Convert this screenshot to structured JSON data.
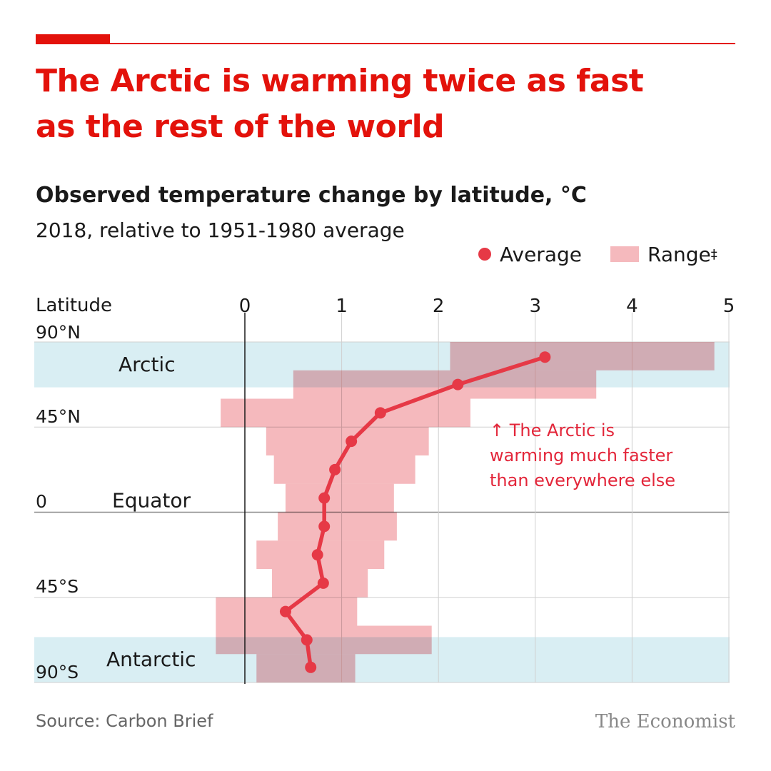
{
  "header": {
    "title_lines": [
      "The Arctic is warming twice as fast",
      "as the rest of the world"
    ],
    "subtitle": "Observed temperature change by latitude, °C",
    "subtitle2": "2018, relative to 1951-1980 average"
  },
  "legend": {
    "average_label": "Average",
    "range_label": "Range",
    "range_marker": "‡"
  },
  "annotation": {
    "lines": [
      "↑ The Arctic is",
      "warming much faster",
      "than everywhere else"
    ]
  },
  "footer": {
    "source": "Source: Carbon Brief",
    "brand": "The Economist"
  },
  "colors": {
    "accent": "#e3120b",
    "average": "#e63946",
    "range": "#f5b9bd",
    "polar_band": "#d9eef3"
  },
  "chart_data": {
    "type": "line",
    "title": "Observed temperature change by latitude, °C",
    "subtitle": "2018, relative to 1951-1980 average",
    "xlim": [
      0,
      5
    ],
    "x_ticks": [
      "0",
      "1",
      "2",
      "3",
      "4",
      "5"
    ],
    "ylabel": "Latitude",
    "ylim": [
      -90,
      90
    ],
    "y_tick_labels": [
      {
        "lat": 90,
        "label": "90°N"
      },
      {
        "lat": 45,
        "label": "45°N"
      },
      {
        "lat": 0,
        "label": "0"
      },
      {
        "lat": -45,
        "label": "45°S"
      },
      {
        "lat": -90,
        "label": "90°S"
      }
    ],
    "region_labels": [
      {
        "label": "Arctic",
        "lat": 78
      },
      {
        "label": "Equator",
        "lat": 6
      },
      {
        "label": "Antarctic",
        "lat": -78
      }
    ],
    "polar_bands": [
      {
        "lat_from": 66,
        "lat_to": 90
      },
      {
        "lat_from": -90,
        "lat_to": -66
      }
    ],
    "series": [
      {
        "name": "Average",
        "points": [
          {
            "lat": 82,
            "value": 3.1
          },
          {
            "lat": 67.5,
            "value": 2.2
          },
          {
            "lat": 52.5,
            "value": 1.4
          },
          {
            "lat": 37.5,
            "value": 1.1
          },
          {
            "lat": 22.5,
            "value": 0.93
          },
          {
            "lat": 7.5,
            "value": 0.82
          },
          {
            "lat": -7.5,
            "value": 0.82
          },
          {
            "lat": -22.5,
            "value": 0.75
          },
          {
            "lat": -37.5,
            "value": 0.81
          },
          {
            "lat": -52.5,
            "value": 0.42
          },
          {
            "lat": -67.5,
            "value": 0.64
          },
          {
            "lat": -82,
            "value": 0.68
          }
        ]
      },
      {
        "name": "Range",
        "bands": [
          {
            "lat_top": 90,
            "lat_bottom": 75,
            "min": 2.12,
            "max": 4.85
          },
          {
            "lat_top": 75,
            "lat_bottom": 60,
            "min": 0.5,
            "max": 3.63
          },
          {
            "lat_top": 60,
            "lat_bottom": 45,
            "min": -0.25,
            "max": 2.33
          },
          {
            "lat_top": 45,
            "lat_bottom": 30,
            "min": 0.22,
            "max": 1.9
          },
          {
            "lat_top": 30,
            "lat_bottom": 15,
            "min": 0.3,
            "max": 1.76
          },
          {
            "lat_top": 15,
            "lat_bottom": 0,
            "min": 0.42,
            "max": 1.54
          },
          {
            "lat_top": 0,
            "lat_bottom": -15,
            "min": 0.34,
            "max": 1.57
          },
          {
            "lat_top": -15,
            "lat_bottom": -30,
            "min": 0.12,
            "max": 1.44
          },
          {
            "lat_top": -30,
            "lat_bottom": -45,
            "min": 0.28,
            "max": 1.27
          },
          {
            "lat_top": -45,
            "lat_bottom": -60,
            "min": -0.3,
            "max": 1.16
          },
          {
            "lat_top": -60,
            "lat_bottom": -75,
            "min": -0.3,
            "max": 1.93
          },
          {
            "lat_top": -75,
            "lat_bottom": -90,
            "min": 0.12,
            "max": 1.14
          }
        ]
      }
    ]
  }
}
